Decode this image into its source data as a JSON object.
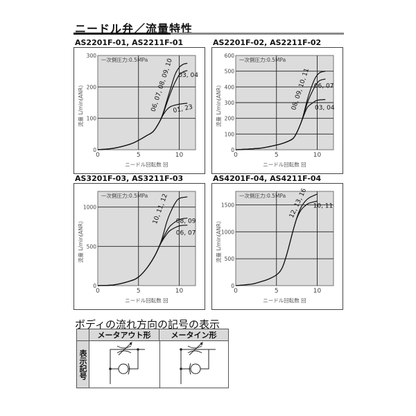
{
  "heading": "ニードル弁／流量特性",
  "chart_data": [
    {
      "type": "line",
      "title": "AS2201F-01, AS2211F-01",
      "xlabel": "ニードル回転数 回",
      "ylabel": "流量 L/min(ANR)",
      "annotation": "一次側圧力:0.5MPa",
      "xlim": [
        0,
        12
      ],
      "ylim": [
        0,
        300
      ],
      "xticks": [
        0,
        5,
        10
      ],
      "yticks": [
        0,
        100,
        200,
        300
      ],
      "grid": true,
      "series": [
        {
          "name": "01, 23",
          "points": [
            [
              0,
              0
            ],
            [
              2,
              5
            ],
            [
              4,
              18
            ],
            [
              5,
              30
            ],
            [
              6,
              45
            ],
            [
              6.8,
              58
            ],
            [
              7.5,
              85
            ],
            [
              8,
              110
            ],
            [
              8.5,
              128
            ],
            [
              9,
              138
            ],
            [
              10,
              145
            ],
            [
              11,
              148
            ]
          ]
        },
        {
          "name": "03, 04",
          "points": [
            [
              0,
              0
            ],
            [
              2,
              5
            ],
            [
              4,
              18
            ],
            [
              5,
              30
            ],
            [
              6,
              45
            ],
            [
              6.8,
              58
            ],
            [
              7.5,
              85
            ],
            [
              8,
              112
            ],
            [
              8.5,
              150
            ],
            [
              9,
              185
            ],
            [
              9.5,
              215
            ],
            [
              10,
              238
            ],
            [
              10.5,
              248
            ],
            [
              11,
              252
            ]
          ]
        },
        {
          "name": "06, 07, 08, 09, 10",
          "points": [
            [
              0,
              0
            ],
            [
              2,
              5
            ],
            [
              4,
              18
            ],
            [
              5,
              30
            ],
            [
              6,
              45
            ],
            [
              6.8,
              58
            ],
            [
              7.5,
              85
            ],
            [
              8,
              115
            ],
            [
              8.5,
              158
            ],
            [
              9,
              200
            ],
            [
              9.5,
              240
            ],
            [
              10,
              262
            ],
            [
              10.5,
              272
            ],
            [
              11,
              275
            ]
          ]
        }
      ]
    },
    {
      "type": "line",
      "title": "AS2201F-02, AS2211F-02",
      "xlabel": "ニードル回転数 回",
      "ylabel": "流量 L/min(ANR)",
      "annotation": "一次側圧力:0.5MPa",
      "xlim": [
        0,
        12
      ],
      "ylim": [
        0,
        600
      ],
      "xticks": [
        0,
        5,
        10
      ],
      "yticks": [
        0,
        100,
        200,
        300,
        400,
        500,
        600
      ],
      "grid": true,
      "series": [
        {
          "name": "03, 04",
          "points": [
            [
              0,
              0
            ],
            [
              3,
              10
            ],
            [
              5,
              30
            ],
            [
              6,
              45
            ],
            [
              7,
              70
            ],
            [
              7.5,
              110
            ],
            [
              8,
              170
            ],
            [
              8.3,
              210
            ],
            [
              8.8,
              270
            ],
            [
              9.5,
              300
            ],
            [
              10,
              315
            ],
            [
              11,
              320
            ]
          ]
        },
        {
          "name": "06, 07",
          "points": [
            [
              0,
              0
            ],
            [
              3,
              10
            ],
            [
              5,
              30
            ],
            [
              6,
              45
            ],
            [
              7,
              70
            ],
            [
              7.5,
              110
            ],
            [
              8,
              170
            ],
            [
              8.3,
              215
            ],
            [
              8.8,
              300
            ],
            [
              9.3,
              360
            ],
            [
              9.8,
              410
            ],
            [
              10.3,
              440
            ],
            [
              11,
              450
            ]
          ]
        },
        {
          "name": "08, 09, 10, 11",
          "points": [
            [
              0,
              0
            ],
            [
              3,
              10
            ],
            [
              5,
              30
            ],
            [
              6,
              45
            ],
            [
              7,
              70
            ],
            [
              7.5,
              110
            ],
            [
              8,
              170
            ],
            [
              8.3,
              220
            ],
            [
              8.8,
              320
            ],
            [
              9.3,
              400
            ],
            [
              9.8,
              460
            ],
            [
              10.3,
              490
            ],
            [
              11,
              500
            ]
          ]
        }
      ]
    },
    {
      "type": "line",
      "title": "AS3201F-03, AS3211F-03",
      "xlabel": "ニードル回転数 回",
      "ylabel": "流量 L/min(ANR)",
      "annotation": "一次側圧力:0.5MPa",
      "xlim": [
        0,
        12
      ],
      "ylim": [
        0,
        1200
      ],
      "xticks": [
        0,
        5,
        10
      ],
      "yticks": [
        0,
        500,
        1000
      ],
      "grid": true,
      "series": [
        {
          "name": "06, 07",
          "points": [
            [
              0,
              0
            ],
            [
              2,
              10
            ],
            [
              4,
              60
            ],
            [
              5,
              110
            ],
            [
              6,
              220
            ],
            [
              7,
              380
            ],
            [
              7.8,
              550
            ],
            [
              8.5,
              660
            ],
            [
              9,
              710
            ],
            [
              10,
              760
            ],
            [
              11,
              770
            ]
          ]
        },
        {
          "name": "08, 09",
          "points": [
            [
              0,
              0
            ],
            [
              2,
              10
            ],
            [
              4,
              60
            ],
            [
              5,
              110
            ],
            [
              6,
              220
            ],
            [
              7,
              380
            ],
            [
              7.8,
              560
            ],
            [
              8.5,
              700
            ],
            [
              9,
              770
            ],
            [
              10,
              840
            ],
            [
              11,
              860
            ]
          ]
        },
        {
          "name": "10, 11, 12",
          "points": [
            [
              0,
              0
            ],
            [
              2,
              10
            ],
            [
              4,
              60
            ],
            [
              5,
              110
            ],
            [
              6,
              220
            ],
            [
              7,
              380
            ],
            [
              7.8,
              570
            ],
            [
              8.5,
              820
            ],
            [
              9,
              950
            ],
            [
              9.5,
              1050
            ],
            [
              10,
              1110
            ],
            [
              11,
              1130
            ]
          ]
        }
      ]
    },
    {
      "type": "line",
      "title": "AS4201F-04, AS4211F-04",
      "xlabel": "ニードル回転数 回",
      "ylabel": "流量 L/min(ANR)",
      "annotation": "一次側圧力:0.5MPa",
      "xlim": [
        0,
        12
      ],
      "ylim": [
        0,
        1750
      ],
      "xticks": [
        0,
        5,
        10
      ],
      "yticks": [
        0,
        500,
        1000,
        1500
      ],
      "grid": true,
      "series": [
        {
          "name": "10, 11",
          "points": [
            [
              0,
              0
            ],
            [
              2,
              30
            ],
            [
              3,
              70
            ],
            [
              4,
              120
            ],
            [
              5,
              200
            ],
            [
              5.7,
              330
            ],
            [
              6.3,
              600
            ],
            [
              7,
              1000
            ],
            [
              7.5,
              1250
            ],
            [
              8,
              1400
            ],
            [
              8.5,
              1480
            ],
            [
              9,
              1530
            ],
            [
              10,
              1570
            ]
          ]
        },
        {
          "name": "12, 13, 16",
          "points": [
            [
              0,
              0
            ],
            [
              2,
              30
            ],
            [
              3,
              70
            ],
            [
              4,
              120
            ],
            [
              5,
              200
            ],
            [
              5.7,
              330
            ],
            [
              6.3,
              600
            ],
            [
              7,
              1000
            ],
            [
              7.5,
              1260
            ],
            [
              8,
              1450
            ],
            [
              8.5,
              1560
            ],
            [
              9,
              1630
            ],
            [
              10,
              1700
            ]
          ]
        }
      ]
    }
  ],
  "symbol_section": {
    "title": "ボディの流れ方向の記号の表示",
    "row_label": "表示記号",
    "columns": [
      "メータアウト形",
      "メータイン形"
    ]
  }
}
